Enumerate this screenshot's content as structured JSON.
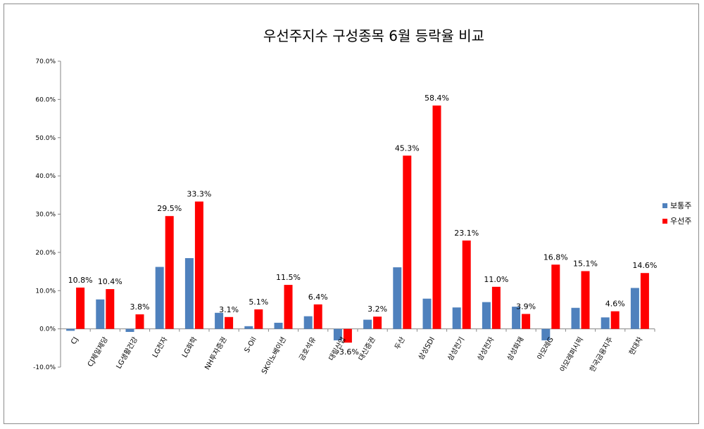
{
  "chart_data": {
    "type": "bar",
    "title": "우선주지수 구성종목   6월 등락율 비교",
    "categories": [
      "CJ",
      "CJ제일제당",
      "LG생활건강",
      "LG전자",
      "LG화학",
      "NH투자증권",
      "S-Oil",
      "SK이노베이션",
      "금호석유",
      "대림산업",
      "대신증권",
      "두산",
      "삼성SDI",
      "삼성전기",
      "삼성전자",
      "삼성화재",
      "아모레G",
      "아모레퍼시픽",
      "한국금융지주",
      "현대차"
    ],
    "series": [
      {
        "name": "보통주",
        "color": "#4f81bd",
        "values": [
          -0.5,
          7.7,
          -0.8,
          16.2,
          18.5,
          4.2,
          0.7,
          1.6,
          3.3,
          -3.0,
          2.4,
          16.1,
          7.9,
          5.6,
          7.0,
          5.8,
          -3.0,
          5.5,
          3.0,
          10.7
        ]
      },
      {
        "name": "우선주",
        "color": "#ff0000",
        "values": [
          10.8,
          10.4,
          3.8,
          29.5,
          33.3,
          3.1,
          5.1,
          11.5,
          6.4,
          -3.6,
          3.2,
          45.3,
          58.4,
          23.1,
          11.0,
          3.9,
          16.8,
          15.1,
          4.6,
          14.6
        ]
      }
    ],
    "data_labels": [
      "10.8%",
      "10.4%",
      "3.8%",
      "29.5%",
      "33.3%",
      "3.1%",
      "5.1%",
      "11.5%",
      "6.4%",
      "-3.6%",
      "3.2%",
      "45.3%",
      "58.4%",
      "23.1%",
      "11.0%",
      "3.9%",
      "16.8%",
      "15.1%",
      "4.6%",
      "14.6%"
    ],
    "yticks": [
      "-10.0%",
      "0.0%",
      "10.0%",
      "20.0%",
      "30.0%",
      "40.0%",
      "50.0%",
      "60.0%",
      "70.0%"
    ],
    "ylim": [
      -10,
      70
    ],
    "legend_position": "right",
    "grid": false
  }
}
